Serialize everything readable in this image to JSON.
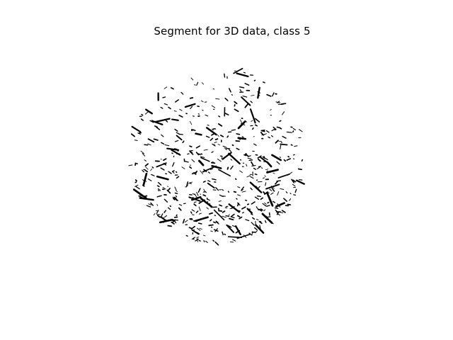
{
  "figure": {
    "title": "Segment for 3D data, class 5"
  },
  "image": {
    "description_name": "segmented-circular-sample",
    "background_color": "#ffffff",
    "foreground_color": "#000000"
  }
}
